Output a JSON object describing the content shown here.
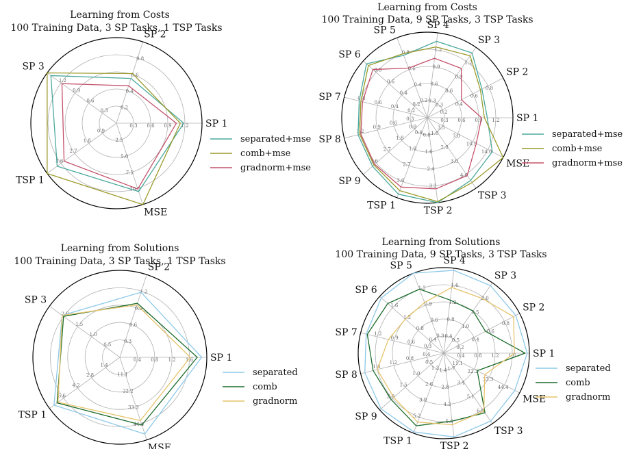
{
  "colors": {
    "separated_cost": "#4aa89c",
    "comb_cost": "#9a9a2a",
    "gradnorm_cost": "#c4516a",
    "separated_sol": "#8cc8e8",
    "comb_sol": "#1a6b2a",
    "gradnorm_sol": "#e6c36a"
  },
  "chart_data": [
    {
      "type": "radar",
      "title": "Learning from Costs",
      "subtitle": "100 Training Data, 3 SP Tasks, 1 TSP Tasks",
      "axes": [
        {
          "label": "SP 1",
          "ticks": [
            "0.3",
            "0.6",
            "0.9",
            "1.2"
          ],
          "max": 1.5
        },
        {
          "label": "SP 2",
          "ticks": [
            "0.2",
            "0.4",
            "0.6",
            "0.8"
          ],
          "max": 1.0
        },
        {
          "label": "SP 3",
          "ticks": [
            "0.3",
            "0.6",
            "0.9",
            "1.2"
          ],
          "max": 1.5
        },
        {
          "label": "TSP 1",
          "ticks": [
            "0.9",
            "1.8",
            "2.7",
            "3.6"
          ],
          "max": 4.5
        },
        {
          "label": "MSE",
          "ticks": [
            "2.5",
            "5.0",
            "7.5",
            "10.0"
          ],
          "max": 12.5
        }
      ],
      "series": [
        {
          "name": "separated+mse",
          "color_key": "separated_cost",
          "values": [
            1.18,
            0.55,
            1.42,
            3.85,
            10.5
          ]
        },
        {
          "name": "comb+mse",
          "color_key": "comb_cost",
          "values": [
            1.12,
            0.61,
            1.5,
            4.5,
            12.5
          ]
        },
        {
          "name": "gradnorm+mse",
          "color_key": "gradnorm_cost",
          "values": [
            1.05,
            0.46,
            1.18,
            3.4,
            10.1
          ]
        }
      ]
    },
    {
      "type": "radar",
      "title": "Learning from Costs",
      "subtitle": "100 Training Data, 9 SP Tasks, 3 TSP Tasks",
      "axes": [
        {
          "label": "SP 1",
          "ticks": [
            "0.3",
            "0.6",
            "0.9",
            "1.2"
          ],
          "max": 1.5
        },
        {
          "label": "SP 2",
          "ticks": [
            "0.2",
            "0.4",
            "0.6",
            "0.8"
          ],
          "max": 1.0
        },
        {
          "label": "SP 3",
          "ticks": [
            "0.3",
            "0.6",
            "0.9",
            "1.2"
          ],
          "max": 1.5
        },
        {
          "label": "SP 4",
          "ticks": [
            "0.3",
            "0.6",
            "0.9",
            "1.2"
          ],
          "max": 1.5
        },
        {
          "label": "SP 5",
          "ticks": [
            "0.2",
            "0.4",
            "0.6",
            "0.8"
          ],
          "max": 1.0
        },
        {
          "label": "SP 6",
          "ticks": [
            "0.2",
            "0.4",
            "0.6",
            "0.8"
          ],
          "max": 1.0
        },
        {
          "label": "SP 7",
          "ticks": [
            "0.2",
            "0.4",
            "0.6",
            "0.8"
          ],
          "max": 1.0
        },
        {
          "label": "SP 8",
          "ticks": [
            "0.3",
            "0.6",
            "0.9",
            "1.2"
          ],
          "max": 1.5
        },
        {
          "label": "SP 9",
          "ticks": [
            "0.9",
            "1.8",
            "2.7",
            "3.6"
          ],
          "max": 4.5
        },
        {
          "label": "TSP 1",
          "ticks": [
            "0.9",
            "1.8",
            "2.7",
            "3.6"
          ],
          "max": 4.5
        },
        {
          "label": "TSP 2",
          "ticks": [
            "0.8",
            "1.6",
            "2.4",
            "3.2"
          ],
          "max": 4.0
        },
        {
          "label": "TSP 3",
          "ticks": [
            "1.0",
            "2.0",
            "3.0",
            "4.0"
          ],
          "max": 5.0
        },
        {
          "label": "MSE",
          "ticks": [
            "3.5",
            "7.0",
            "10.5",
            "14.0"
          ],
          "max": 17.5
        }
      ],
      "series": [
        {
          "name": "separated+mse",
          "color_key": "separated_cost",
          "values": [
            1.05,
            0.72,
            1.38,
            1.35,
            0.78,
            0.95,
            0.82,
            1.25,
            3.85,
            4.3,
            4.0,
            4.45,
            15.0
          ]
        },
        {
          "name": "comb+mse",
          "color_key": "comb_cost",
          "values": [
            1.0,
            0.7,
            1.32,
            1.25,
            0.8,
            0.92,
            0.8,
            1.22,
            3.75,
            4.1,
            3.95,
            4.6,
            17.5
          ]
        },
        {
          "name": "gradnorm+mse",
          "color_key": "gradnorm_cost",
          "values": [
            0.95,
            0.45,
            1.05,
            1.05,
            0.62,
            0.85,
            0.78,
            1.2,
            3.7,
            3.9,
            3.35,
            4.1,
            11.3
          ]
        }
      ]
    },
    {
      "type": "radar",
      "title": "Learning from Solutions",
      "subtitle": "100 Training Data, 3 SP Tasks, 1 TSP Tasks",
      "axes": [
        {
          "label": "SP 1",
          "ticks": [
            "0.4",
            "0.8",
            "1.2",
            "1.6"
          ],
          "max": 2.0
        },
        {
          "label": "SP 2",
          "ticks": [
            "0.3",
            "0.6",
            "0.9",
            "1.2"
          ],
          "max": 1.5
        },
        {
          "label": "SP 3",
          "ticks": [
            "0.5",
            "1.0",
            "1.5",
            "2.0"
          ],
          "max": 2.5
        },
        {
          "label": "TSP 1",
          "ticks": [
            "1.4",
            "2.8",
            "4.2",
            "5.6"
          ],
          "max": 7.0
        },
        {
          "label": "MSE",
          "ticks": [
            "11.1",
            "22.2",
            "33.3",
            "44.4"
          ],
          "max": 55.5
        }
      ],
      "series": [
        {
          "name": "separated",
          "color_key": "separated_sol",
          "values": [
            1.88,
            1.18,
            2.05,
            6.55,
            51.5
          ]
        },
        {
          "name": "comb",
          "color_key": "comb_sol",
          "values": [
            1.78,
            0.98,
            2.0,
            6.25,
            45.5
          ]
        },
        {
          "name": "gradnorm",
          "color_key": "gradnorm_sol",
          "values": [
            1.62,
            0.95,
            2.05,
            6.15,
            42.5
          ]
        }
      ]
    },
    {
      "type": "radar",
      "title": "Learning from Solutions",
      "subtitle": "100 Training Data, 9 SP Tasks, 3 TSP Tasks",
      "axes": [
        {
          "label": "SP 1",
          "ticks": [
            "0.4",
            "0.8",
            "1.2",
            "1.6"
          ],
          "max": 2.0
        },
        {
          "label": "SP 2",
          "ticks": [
            "0.2",
            "0.4",
            "0.6",
            "0.8"
          ],
          "max": 1.0
        },
        {
          "label": "SP 3",
          "ticks": [
            "0.5",
            "1.0",
            "1.5",
            "2.0"
          ],
          "max": 2.5
        },
        {
          "label": "SP 4",
          "ticks": [
            "0.4",
            "0.8",
            "1.2",
            "1.6"
          ],
          "max": 2.0
        },
        {
          "label": "SP 5",
          "ticks": [
            "0.3",
            "0.6",
            "0.9",
            "1.2"
          ],
          "max": 1.5
        },
        {
          "label": "SP 6",
          "ticks": [
            "0.4",
            "0.8",
            "1.2",
            "1.6"
          ],
          "max": 2.0
        },
        {
          "label": "SP 7",
          "ticks": [
            "0.3",
            "0.6",
            "0.9",
            "1.2"
          ],
          "max": 1.5
        },
        {
          "label": "SP 8",
          "ticks": [
            "0.4",
            "0.8",
            "1.2",
            "1.6"
          ],
          "max": 2.0
        },
        {
          "label": "SP 9",
          "ticks": [
            "0.5",
            "1.0",
            "1.5",
            "2.0"
          ],
          "max": 2.5
        },
        {
          "label": "TSP 1",
          "ticks": [
            "1.3",
            "2.6",
            "3.9",
            "5.2"
          ],
          "max": 6.5
        },
        {
          "label": "TSP 2",
          "ticks": [
            "1.4",
            "2.8",
            "4.2",
            "5.6"
          ],
          "max": 7.0
        },
        {
          "label": "TSP 3",
          "ticks": [
            "1.7",
            "3.4",
            "5.1",
            "6.8"
          ],
          "max": 8.5
        },
        {
          "label": "MSE",
          "ticks": [
            "11.1",
            "22.2",
            "33.3",
            "44.4"
          ],
          "max": 55.5
        }
      ],
      "series": [
        {
          "name": "separated",
          "color_key": "separated_sol",
          "values": [
            1.95,
            0.95,
            2.4,
            1.95,
            1.5,
            1.95,
            1.4,
            1.9,
            2.45,
            6.4,
            6.9,
            8.2,
            52.0
          ]
        },
        {
          "name": "comb",
          "color_key": "comb_sol",
          "values": [
            1.9,
            0.55,
            1.5,
            1.25,
            1.2,
            1.75,
            1.38,
            1.7,
            2.05,
            5.9,
            5.6,
            7.2,
            24.5
          ]
        },
        {
          "name": "gradnorm",
          "color_key": "gradnorm_sol",
          "values": [
            1.65,
            0.92,
            1.95,
            1.55,
            0.95,
            1.2,
            1.0,
            1.6,
            1.95,
            5.6,
            5.9,
            7.0,
            30.0
          ]
        }
      ]
    }
  ]
}
